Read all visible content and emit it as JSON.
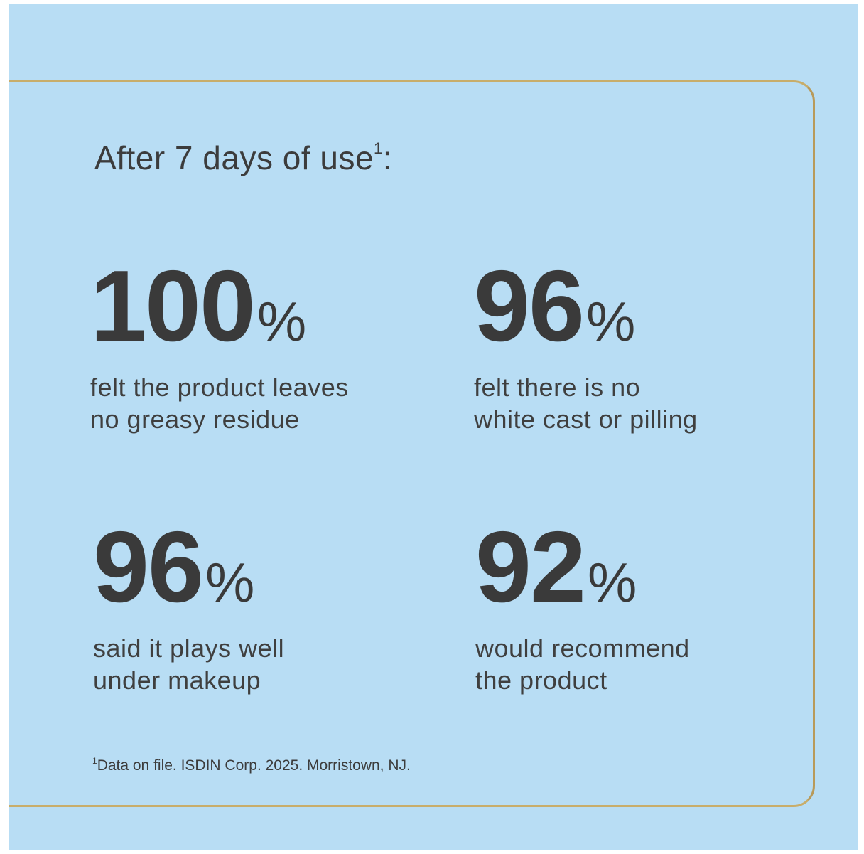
{
  "colors": {
    "background": "#b8ddf4",
    "frame_border": "#c8ad6a",
    "text": "#3a3a3a"
  },
  "headline": {
    "text": "After 7 days of use",
    "footnote_marker": "1",
    "suffix": ":"
  },
  "stats": [
    {
      "value": "100",
      "unit": "%",
      "description": "felt the product leaves\nno greasy residue"
    },
    {
      "value": "96",
      "unit": "%",
      "description": "felt there is no\nwhite cast or pilling"
    },
    {
      "value": "96",
      "unit": "%",
      "description": "said it plays well\nunder makeup"
    },
    {
      "value": "92",
      "unit": "%",
      "description": "would recommend\nthe product"
    }
  ],
  "footnote": {
    "marker": "1",
    "text": "Data on file. ISDIN Corp. 2025. Morristown, NJ."
  }
}
